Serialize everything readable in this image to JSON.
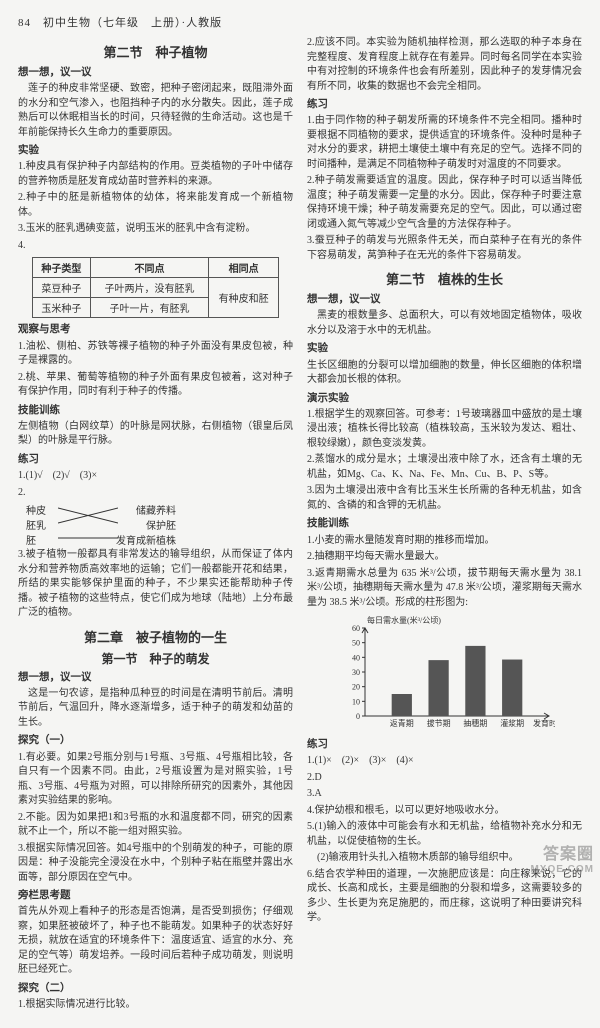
{
  "header": "84　初中生物（七年级　上册）·人教版",
  "left": {
    "sec_title": "第二节　种子植物",
    "l1": "想一想，议一议",
    "p1": "莲子的种皮非常坚硬、致密，把种子密闭起来，既阻滞外面的水分和空气渗入，也阻挡种子内的水分散失。因此，莲子成熟后可以休眠相当长的时间，只待轻微的生命活动。这也是千年前能保持长久生命力的重要原因。",
    "l2": "实验",
    "p2": "1.种皮具有保护种子内部结构的作用。豆类植物的子叶中储存的营养物质是胚发育成幼苗时营养料的来源。",
    "p3": "2.种子中的胚是新植物体的幼体，将来能发育成一个新植物体。",
    "p4": "3.玉米的胚乳遇碘变蓝，说明玉米的胚乳中含有淀粉。",
    "p5": "4.",
    "table": {
      "h1": "种子类型",
      "h2": "不同点",
      "h3": "相同点",
      "r1c1": "菜豆种子",
      "r1c2": "子叶两片，没有胚乳",
      "r2c1": "玉米种子",
      "r2c2": "子叶一片，有胚乳",
      "merge": "有种皮和胚"
    },
    "l3": "观察与思考",
    "p6": "1.油松、侧柏、苏铁等裸子植物的种子外面没有果皮包被，种子是裸露的。",
    "p7": "2.桃、苹果、葡萄等植物的种子外面有果皮包被着，这对种子有保护作用，同时有利于种子的传播。",
    "l4": "技能训练",
    "p8": "左侧植物（白网纹草）的叶脉是网状脉，右侧植物（银皇后凤梨）的叶脉是平行脉。",
    "l5": "练习",
    "p9": "1.(1)√　(2)√　(3)×",
    "p10": "2.",
    "cross": {
      "a": "种皮",
      "b": "胚乳",
      "c": "胚",
      "d": "储藏养料",
      "e": "保护胚",
      "f": "发育成新植株"
    },
    "p11": "3.被子植物一般都具有非常发达的输导组织，从而保证了体内水分和营养物质高效率地的运输；它们一般都能开花和结果，所结的果实能够保护里面的种子，不少果实还能帮助种子传播。被子植物的这些特点，使它们成为地球（陆地）上分布最广泛的植物。",
    "ch_title": "第二章　被子植物的一生",
    "sub1": "第一节　种子的萌发",
    "l6": "想一想，议一议",
    "p12": "这是一句农谚，是指种瓜种豆的时间是在清明节前后。清明节前后，气温回升，降水逐渐增多，适于种子的萌发和幼苗的生长。",
    "l7": "探究（一）",
    "p13": "1.有必要。如果2号瓶分别与1号瓶、3号瓶、4号瓶相比较，各自只有一个因素不同。由此，2号瓶设置为是对照实验，1号瓶、3号瓶、4号瓶为对照，可以排除所研究的因素外，其他因素对实验结果的影响。",
    "p14": "2.不能。因为如果把1和3号瓶的水和温度都不同，研究的因素就不止一个，所以不能一组对照实验。",
    "p15": "3.根据实际情况回答。如4号瓶中的个别萌发的种子，可能的原因是：种子没能完全浸没在水中，个别种子粘在瓶壁并露出水面等，部分原因在空气中。",
    "l8": "旁栏思考题",
    "p16": "首先从外观上看种子的形态是否饱满，是否受到损伤；仔细观察，如果胚被破坏了，种子也不能萌发。如果种子的状态好好无损，就放在适宜的环境条件下：温度适宜、适宜的水分、充足的空气等）萌发培养。一段时间后若种子成功萌发，则说明胚已经死亡。",
    "l9": "探究（二）",
    "p17": "1.根据实际情况进行比较。"
  },
  "right": {
    "p1": "2.应该不同。本实验为随机抽样检测，那么选取的种子本身在完整程度、发育程度上就存在有差异。同时每名同学在本实验中有对控制的环境条件也会有所差别，因此种子的发芽情况会有所不同，收集的数据也不会完全相同。",
    "l1": "练习",
    "p2": "1.由于同作物的种子朝发所需的环境条件不完全相同。播种时要根据不同植物的要求，提供适宜的环境条件。没种时是种子对水分的要求，耕把土壤使土壤中有充足的空气。选择不同的时间播种，是满足不同植物种子萌发时对温度的不同要求。",
    "p3": "2.种子萌发需要适宜的温度。因此，保存种子时可以适当降低温度；种子萌发需要一定量的水分。因此，保存种子时要注意保持环境干燥；种子萌发需要充足的空气。因此，可以通过密闭或通入氮气等减少空气含量的方法保存种子。",
    "p4": "3.蚕豆种子的萌发与光照条件无关，而白菜种子在有光的条件下容易萌发，莴笋种子在无光的条件下容易萌发。",
    "sec2": "第二节　植株的生长",
    "l2": "想一想，议一议",
    "p5": "黑麦的根数量多、总面积大，可以有效地固定植物体，吸收水分以及溶于水中的无机盐。",
    "l3": "实验",
    "p6": "生长区细胞的分裂可以增加细胞的数量，伸长区细胞的体积增大都会加长根的体积。",
    "l4": "演示实验",
    "p7": "1.根据学生的观察回答。可参考：1号玻璃器皿中盛放的是土壤浸出液；植株长得比较高（植株较高，玉米较为发达、粗壮、根较绿嫩），颜色变淡发黄。",
    "p8": "2.蒸馏水的成分是水；土壤浸出液中除了水，还含有土壤的无机盐，如Mg、Ca、K、Na、Fe、Mn、Cu、B、P、S等。",
    "p9": "3.因为土壤浸出液中含有比玉米生长所需的各种无机盐，如含氮的、含磷的和含钾的无机盐。",
    "l5": "技能训练",
    "p10": "1.小麦的需水量随发育时期的推移而增加。",
    "p11": "2.抽穗期平均每天需水量最大。",
    "p12": "3.返青期需水总量为 635 米³/公顷，拔节期每天需水量为 38.1 米³/公顷，抽穗期每天需水量为 47.8 米³/公顷，灌浆期每天需水量为 38.5 米³/公顷。形成的柱形图为:",
    "chart": {
      "ylabel": "每日需水量(米³/公顷)",
      "categories": [
        "返青期",
        "拔节期",
        "抽穗期",
        "灌浆期",
        "发育时期"
      ],
      "values": [
        15,
        38.1,
        47.8,
        38.5
      ],
      "ylim": [
        0,
        60
      ],
      "ytick_step": 10,
      "bar_color": "#555",
      "bg": "#f5f5f3",
      "axis_color": "#333",
      "fontsize": 8
    },
    "l6": "练习",
    "p13": "1.(1)×　(2)×　(3)×　(4)×",
    "p14": "2.D",
    "p15": "3.A",
    "p16": "4.保护幼根和根毛，以可以更好地吸收水分。",
    "p17": "5.(1)输入的液体中可能会有水和无机盐，给植物补充水分和无机盐，以促使植物的生长。",
    "p18": "　(2)输液用针头扎入植物木质部的输导组织中。",
    "p19": "6.结合农学种田的道理，一次施肥应该是：向庄稼来说，它的成长、长高和成长，主要是细胞的分裂和增多，这需要较多的多少、生长更为充足施肥的，而庄稼，这说明了种田要讲究科学。"
  },
  "watermark": {
    "big": "答案圈",
    "small": "MXQE.COM"
  }
}
